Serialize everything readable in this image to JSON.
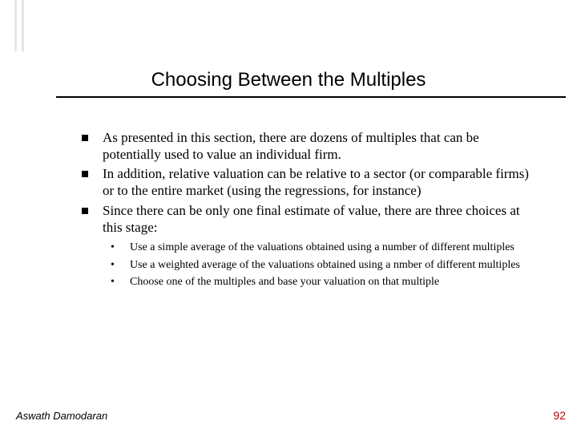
{
  "colors": {
    "background": "#ffffff",
    "text": "#000000",
    "pagenum": "#c00000",
    "leftbar": "#e6e6e6",
    "rule": "#000000"
  },
  "fonts": {
    "title_family": "Arial, Helvetica, sans-serif",
    "title_size_pt": 24,
    "body_family": "Times New Roman, Times, serif",
    "body_size_pt": 17,
    "sub_size_pt": 14,
    "footer_family": "Arial, Helvetica, sans-serif",
    "footer_size_pt": 13
  },
  "title": "Choosing Between the Multiples",
  "bullets": [
    "As presented in this section, there are dozens of multiples that can be potentially used to value an individual firm.",
    "In addition, relative valuation can be relative to a sector (or comparable firms) or to the entire market (using the regressions, for instance)",
    "Since there can be only one final estimate of value, there are three choices at this stage:"
  ],
  "subbullets": [
    "Use a simple average of the valuations obtained using a number of different multiples",
    "Use a weighted average of the valuations obtained using a nmber of different multiples",
    "Choose one of the multiples and base your valuation on that multiple"
  ],
  "footer": {
    "author": "Aswath Damodaran",
    "page": "92"
  }
}
